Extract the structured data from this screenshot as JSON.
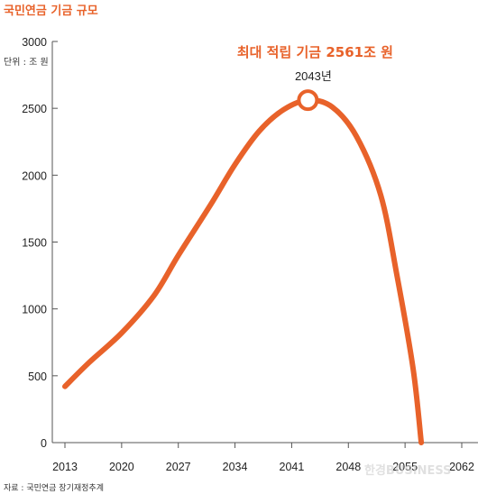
{
  "chart_data": {
    "type": "line",
    "title": "국민연금 기금 규모",
    "unit_label": "단위 : 조 원",
    "x_ticks": [
      "2013",
      "2020",
      "2027",
      "2034",
      "2041",
      "2048",
      "2055",
      "2062"
    ],
    "y_ticks": [
      0,
      500,
      1000,
      1500,
      2000,
      2500,
      3000
    ],
    "xlim": [
      2013,
      2062
    ],
    "ylim": [
      0,
      3000
    ],
    "series": [
      {
        "points": [
          {
            "x": 2013,
            "y": 420
          },
          {
            "x": 2016,
            "y": 600
          },
          {
            "x": 2020,
            "y": 820
          },
          {
            "x": 2024,
            "y": 1100
          },
          {
            "x": 2027,
            "y": 1400
          },
          {
            "x": 2031,
            "y": 1780
          },
          {
            "x": 2034,
            "y": 2080
          },
          {
            "x": 2037,
            "y": 2330
          },
          {
            "x": 2040,
            "y": 2490
          },
          {
            "x": 2043,
            "y": 2561
          },
          {
            "x": 2046,
            "y": 2510
          },
          {
            "x": 2049,
            "y": 2290
          },
          {
            "x": 2052,
            "y": 1850
          },
          {
            "x": 2054,
            "y": 1250
          },
          {
            "x": 2056,
            "y": 550
          },
          {
            "x": 2057,
            "y": 0
          }
        ]
      }
    ],
    "annotation": {
      "text": "최대 적립 기금 2561조 원",
      "year_label": "2043년",
      "x": 2043,
      "y": 2561
    },
    "source": "자료 : 국민연금 장기재정추계",
    "watermark": "한경BUSINESS",
    "line_color": "#e8622a",
    "grid": false
  }
}
